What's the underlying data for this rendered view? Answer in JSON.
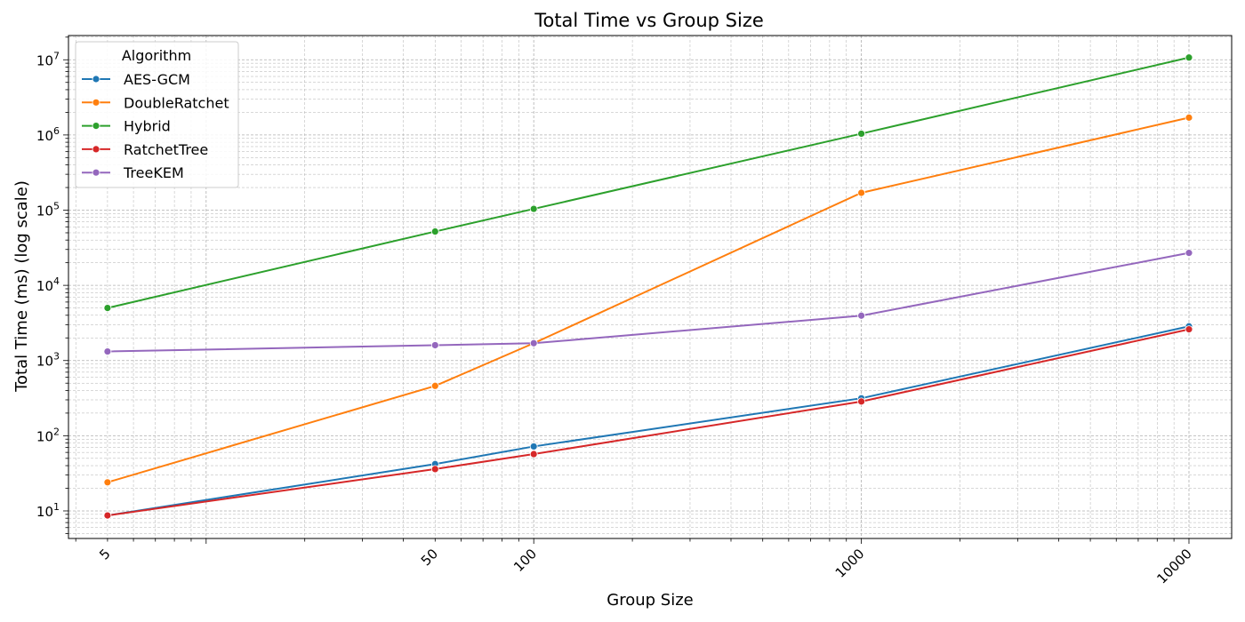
{
  "chart_data": {
    "type": "line",
    "title": "Total Time vs Group Size",
    "xlabel": "Group Size",
    "ylabel": "Total Time (ms) (log scale)",
    "x_scale": "log",
    "y_scale": "log",
    "x": [
      5,
      50,
      100,
      1000,
      10000
    ],
    "x_tick_labels": [
      "5",
      "50",
      "100",
      "1000",
      "10000"
    ],
    "y_ticks": [
      {
        "base": "10",
        "exp": "1"
      },
      {
        "base": "10",
        "exp": "2"
      },
      {
        "base": "10",
        "exp": "3"
      },
      {
        "base": "10",
        "exp": "4"
      },
      {
        "base": "10",
        "exp": "5"
      },
      {
        "base": "10",
        "exp": "6"
      },
      {
        "base": "10",
        "exp": "7"
      }
    ],
    "xlim": [
      3.8,
      13500
    ],
    "ylim": [
      4.3,
      21000000
    ],
    "grid": true,
    "legend_title": "Algorithm",
    "legend_position": "top-left",
    "series": [
      {
        "name": "AES-GCM",
        "color": "#1f77b4",
        "values": [
          8.7,
          42,
          72,
          315,
          2850
        ]
      },
      {
        "name": "DoubleRatchet",
        "color": "#ff7f0e",
        "values": [
          24,
          460,
          1700,
          170000,
          1700000
        ]
      },
      {
        "name": "Hybrid",
        "color": "#2ca02c",
        "values": [
          5000,
          52000,
          104000,
          1040000,
          10700000
        ]
      },
      {
        "name": "RatchetTree",
        "color": "#d62728",
        "values": [
          8.7,
          36,
          57,
          285,
          2600
        ]
      },
      {
        "name": "TreeKEM",
        "color": "#9467bd",
        "values": [
          1320,
          1600,
          1700,
          3950,
          27000
        ]
      }
    ]
  }
}
